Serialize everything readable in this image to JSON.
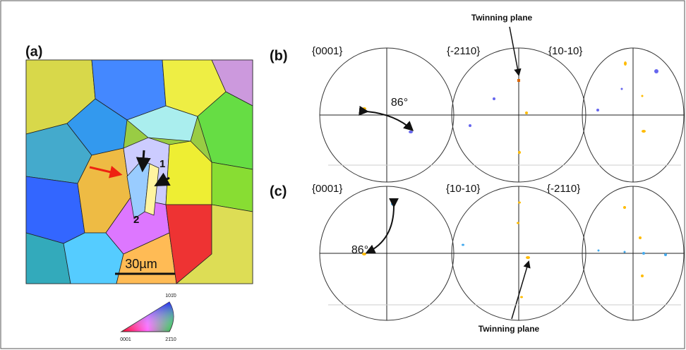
{
  "panels": {
    "a": {
      "label": "(a)",
      "scale_bar": "30µm",
      "markers": [
        "1",
        "2"
      ],
      "key": {
        "top": "101̄0",
        "left": "0001",
        "right": "21̄10"
      }
    },
    "b": {
      "label": "(b)",
      "poles": [
        "{0001}",
        "{-2110}",
        "{10-10}"
      ],
      "angle": "86°",
      "annotation": "Twinning plane"
    },
    "c": {
      "label": "(c)",
      "poles": [
        "{0001}",
        "{10-10}",
        "{-2110}"
      ],
      "angle": "86°",
      "annotation": "Twinning plane"
    }
  }
}
